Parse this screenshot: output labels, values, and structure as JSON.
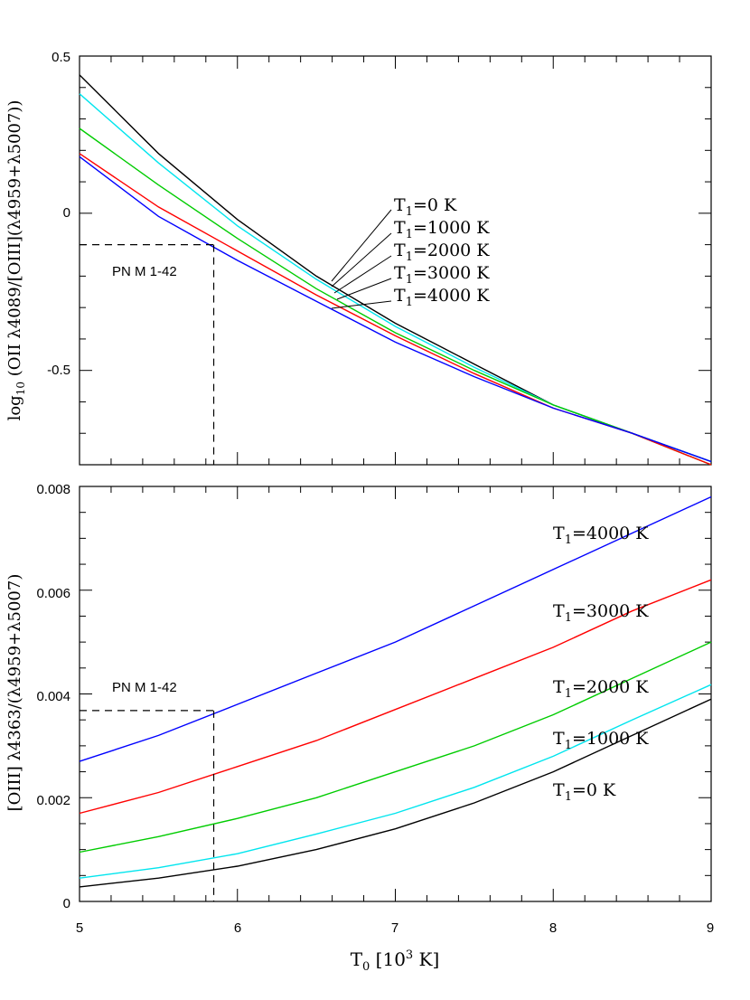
{
  "x_axis": {
    "label_main": "T",
    "label_sub": "0",
    "label_rest": " [10",
    "label_sup": "3",
    "label_end": " K]",
    "ticks": [
      "5",
      "6",
      "7",
      "8",
      "9"
    ]
  },
  "colors": {
    "T1_0": "#000000",
    "T1_1000": "#00e5ee",
    "T1_2000": "#00cc00",
    "T1_3000": "#ff0000",
    "T1_4000": "#0000ff"
  },
  "chart_data": [
    {
      "type": "line",
      "panel": "top",
      "xlim": [
        5,
        9
      ],
      "ylim": [
        -0.8,
        0.5
      ],
      "ylabel_log": "log",
      "ylabel_log_sub": "10",
      "ylabel_rest": " (OII λ4089/[OIII](λ4959+λ5007))",
      "yticks": [
        "0.5",
        "0",
        "-0.5"
      ],
      "x": [
        5,
        5.5,
        6,
        6.5,
        7,
        7.5,
        8,
        8.5,
        9
      ],
      "series": [
        {
          "name": "T1=0 K",
          "key": "T1_0",
          "values": [
            0.44,
            0.19,
            -0.02,
            -0.2,
            -0.35,
            -0.48,
            -0.61,
            -0.7,
            -0.79
          ]
        },
        {
          "name": "T1=1000 K",
          "key": "T1_1000",
          "values": [
            0.38,
            0.16,
            -0.04,
            -0.21,
            -0.36,
            -0.49,
            -0.61,
            -0.7,
            -0.79
          ]
        },
        {
          "name": "T1=2000 K",
          "key": "T1_2000",
          "values": [
            0.27,
            0.09,
            -0.08,
            -0.24,
            -0.38,
            -0.5,
            -0.61,
            -0.7,
            -0.8
          ]
        },
        {
          "name": "T1=3000 K",
          "key": "T1_3000",
          "values": [
            0.19,
            0.02,
            -0.12,
            -0.26,
            -0.39,
            -0.51,
            -0.62,
            -0.7,
            -0.8
          ]
        },
        {
          "name": "T1=4000 K",
          "key": "T1_4000",
          "values": [
            0.18,
            -0.01,
            -0.15,
            -0.28,
            -0.41,
            -0.52,
            -0.62,
            -0.7,
            -0.79
          ]
        }
      ],
      "labels": [
        {
          "pre": "T",
          "sub": "1",
          "post": "=0  K"
        },
        {
          "pre": "T",
          "sub": "1",
          "post": "=1000  K"
        },
        {
          "pre": "T",
          "sub": "1",
          "post": "=2000  K"
        },
        {
          "pre": "T",
          "sub": "1",
          "post": "=3000  K"
        },
        {
          "pre": "T",
          "sub": "1",
          "post": "=4000  K"
        }
      ],
      "annotation": {
        "text": "PN M 1-42",
        "x": 5.85,
        "y": -0.1
      }
    },
    {
      "type": "line",
      "panel": "bottom",
      "xlim": [
        5,
        9
      ],
      "ylim": [
        0,
        0.008
      ],
      "ylabel": "[OIII] λ4363/(λ4959+λ5007)",
      "yticks": [
        "0",
        "0.002",
        "0.004",
        "0.006",
        "0.008"
      ],
      "x": [
        5,
        5.5,
        6,
        6.5,
        7,
        7.5,
        8,
        8.5,
        9
      ],
      "series": [
        {
          "name": "T1=0 K",
          "key": "T1_0",
          "values": [
            0.00028,
            0.00045,
            0.00068,
            0.001,
            0.0014,
            0.0019,
            0.0025,
            0.0032,
            0.0039
          ]
        },
        {
          "name": "T1=1000 K",
          "key": "T1_1000",
          "values": [
            0.00045,
            0.00065,
            0.00092,
            0.0013,
            0.0017,
            0.0022,
            0.0028,
            0.0035,
            0.00418
          ]
        },
        {
          "name": "T1=2000 K",
          "key": "T1_2000",
          "values": [
            0.00095,
            0.00125,
            0.0016,
            0.002,
            0.0025,
            0.003,
            0.0036,
            0.0043,
            0.005
          ]
        },
        {
          "name": "T1=3000 K",
          "key": "T1_3000",
          "values": [
            0.0017,
            0.0021,
            0.0026,
            0.0031,
            0.0037,
            0.0043,
            0.0049,
            0.0056,
            0.0062
          ]
        },
        {
          "name": "T1=4000 K",
          "key": "T1_4000",
          "values": [
            0.0027,
            0.0032,
            0.0038,
            0.0044,
            0.005,
            0.0057,
            0.0064,
            0.0071,
            0.0078
          ]
        }
      ],
      "labels": [
        {
          "pre": "T",
          "sub": "1",
          "post": "=4000  K"
        },
        {
          "pre": "T",
          "sub": "1",
          "post": "=3000  K"
        },
        {
          "pre": "T",
          "sub": "1",
          "post": "=2000  K"
        },
        {
          "pre": "T",
          "sub": "1",
          "post": "=1000  K"
        },
        {
          "pre": "T",
          "sub": "1",
          "post": "=0  K"
        }
      ],
      "annotation": {
        "text": "PN M 1-42",
        "x": 5.85,
        "y": 0.00368
      }
    }
  ]
}
